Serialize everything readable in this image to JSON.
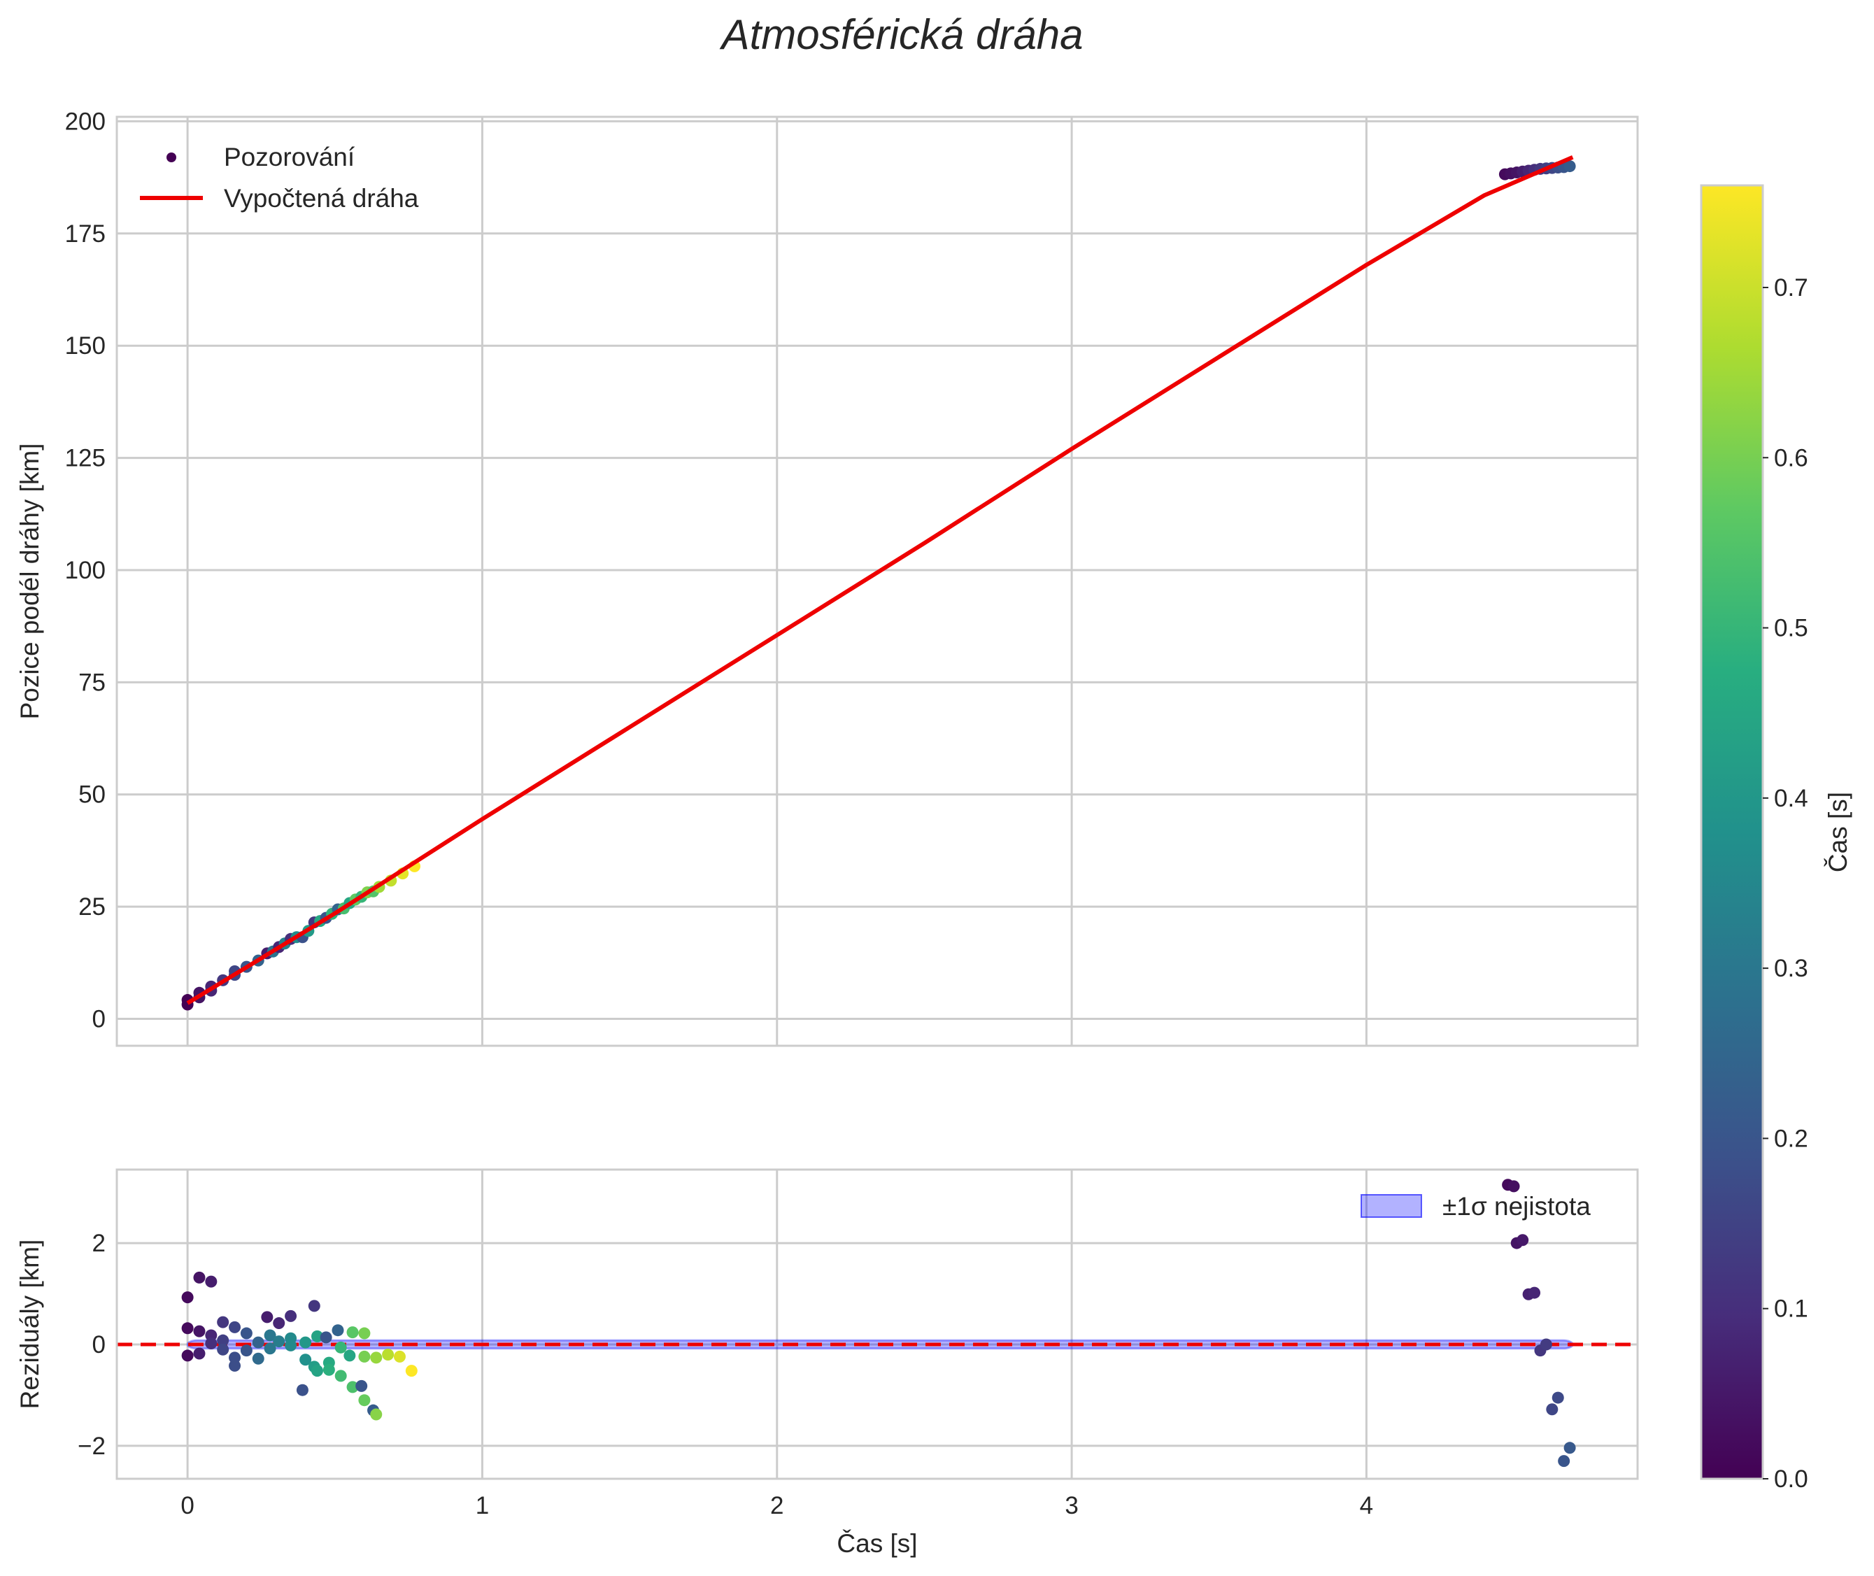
{
  "title": "Atmosférická dráha",
  "chart_data": [
    {
      "type": "scatter",
      "panel": "top",
      "ylabel": "Pozice podél dráhy [km]",
      "xlim": [
        -0.24,
        4.92
      ],
      "ylim": [
        -6,
        201
      ],
      "xticks": [
        0,
        1,
        2,
        3,
        4
      ],
      "xtick_labels": [
        "",
        "",
        "",
        "",
        ""
      ],
      "yticks": [
        0,
        25,
        50,
        75,
        100,
        125,
        150,
        175,
        200
      ],
      "ytick_labels": [
        "0",
        "25",
        "50",
        "75",
        "100",
        "125",
        "150",
        "175",
        "200"
      ],
      "grid": true,
      "legend": {
        "position": "top-left",
        "entries": [
          {
            "label": "Pozorování",
            "kind": "scatter"
          },
          {
            "label": "Vypočtená dráha",
            "kind": "line",
            "color": "#ee0000"
          }
        ]
      },
      "series": [
        {
          "name": "Pozorování",
          "kind": "scatter",
          "colormap": "viridis",
          "points_cluster1": [
            {
              "x": 0.0,
              "y": 4.2,
              "c": 0.0
            },
            {
              "x": 0.0,
              "y": 3.2,
              "c": 0.0
            },
            {
              "x": 0.04,
              "y": 5.8,
              "c": 0.04
            },
            {
              "x": 0.04,
              "y": 4.8,
              "c": 0.04
            },
            {
              "x": 0.08,
              "y": 7.2,
              "c": 0.08
            },
            {
              "x": 0.08,
              "y": 6.3,
              "c": 0.08
            },
            {
              "x": 0.12,
              "y": 8.6,
              "c": 0.12
            },
            {
              "x": 0.16,
              "y": 9.8,
              "c": 0.16
            },
            {
              "x": 0.16,
              "y": 10.6,
              "c": 0.16
            },
            {
              "x": 0.2,
              "y": 11.6,
              "c": 0.2
            },
            {
              "x": 0.24,
              "y": 13.0,
              "c": 0.24
            },
            {
              "x": 0.27,
              "y": 14.6,
              "c": 0.06
            },
            {
              "x": 0.29,
              "y": 15.0,
              "c": 0.29
            },
            {
              "x": 0.31,
              "y": 16.0,
              "c": 0.08
            },
            {
              "x": 0.33,
              "y": 16.8,
              "c": 0.33
            },
            {
              "x": 0.35,
              "y": 17.8,
              "c": 0.1
            },
            {
              "x": 0.37,
              "y": 18.2,
              "c": 0.37
            },
            {
              "x": 0.39,
              "y": 18.2,
              "c": 0.19
            },
            {
              "x": 0.41,
              "y": 19.6,
              "c": 0.41
            },
            {
              "x": 0.43,
              "y": 21.5,
              "c": 0.12
            },
            {
              "x": 0.45,
              "y": 21.8,
              "c": 0.45
            },
            {
              "x": 0.47,
              "y": 22.5,
              "c": 0.2
            },
            {
              "x": 0.49,
              "y": 23.4,
              "c": 0.49
            },
            {
              "x": 0.51,
              "y": 24.4,
              "c": 0.24
            },
            {
              "x": 0.53,
              "y": 24.6,
              "c": 0.53
            },
            {
              "x": 0.55,
              "y": 25.8,
              "c": 0.45
            },
            {
              "x": 0.57,
              "y": 26.6,
              "c": 0.57
            },
            {
              "x": 0.59,
              "y": 27.2,
              "c": 0.5
            },
            {
              "x": 0.61,
              "y": 28.2,
              "c": 0.61
            },
            {
              "x": 0.63,
              "y": 28.4,
              "c": 0.55
            },
            {
              "x": 0.65,
              "y": 29.4,
              "c": 0.65
            },
            {
              "x": 0.69,
              "y": 30.8,
              "c": 0.69
            },
            {
              "x": 0.73,
              "y": 32.4,
              "c": 0.73
            },
            {
              "x": 0.77,
              "y": 34.0,
              "c": 0.76
            }
          ],
          "points_cluster2": [
            {
              "x": 4.47,
              "y": 188.2,
              "c": 0.02
            },
            {
              "x": 4.49,
              "y": 188.4,
              "c": 0.03
            },
            {
              "x": 4.51,
              "y": 188.6,
              "c": 0.04
            },
            {
              "x": 4.53,
              "y": 188.8,
              "c": 0.06
            },
            {
              "x": 4.55,
              "y": 189.0,
              "c": 0.08
            },
            {
              "x": 4.57,
              "y": 189.2,
              "c": 0.1
            },
            {
              "x": 4.59,
              "y": 189.4,
              "c": 0.12
            },
            {
              "x": 4.61,
              "y": 189.5,
              "c": 0.14
            },
            {
              "x": 4.63,
              "y": 189.6,
              "c": 0.16
            },
            {
              "x": 4.65,
              "y": 189.7,
              "c": 0.18
            },
            {
              "x": 4.67,
              "y": 189.8,
              "c": 0.2
            },
            {
              "x": 4.69,
              "y": 190.0,
              "c": 0.22
            }
          ]
        },
        {
          "name": "Vypočtená dráha",
          "kind": "line",
          "color": "#ee0000",
          "x": [
            0.0,
            0.5,
            1.0,
            1.5,
            2.0,
            2.5,
            3.0,
            3.5,
            4.0,
            4.4,
            4.7
          ],
          "y": [
            3.5,
            23.5,
            44.5,
            65.0,
            85.5,
            106.0,
            127.0,
            147.5,
            168.0,
            183.5,
            192.0
          ]
        }
      ]
    },
    {
      "type": "scatter",
      "panel": "bottom",
      "xlabel": "Čas [s]",
      "ylabel": "Reziduály [km]",
      "xlim": [
        -0.24,
        4.92
      ],
      "ylim": [
        -2.65,
        3.45
      ],
      "xticks": [
        0,
        1,
        2,
        3,
        4
      ],
      "xtick_labels": [
        "0",
        "1",
        "2",
        "3",
        "4"
      ],
      "yticks": [
        -2,
        0,
        2
      ],
      "ytick_labels": [
        "−2",
        "0",
        "2"
      ],
      "grid": true,
      "legend": {
        "position": "top-right",
        "entries": [
          {
            "label": "±1σ nejistota",
            "kind": "band",
            "color": "#0000ff"
          }
        ]
      },
      "zero_line": {
        "y": 0,
        "color": "#ee0000",
        "style": "dashed"
      },
      "band": {
        "x_start": 0.0,
        "x_end": 4.7,
        "half_width": 0.08
      },
      "series": [
        {
          "name": "Reziduály",
          "kind": "scatter",
          "colormap": "viridis",
          "points": [
            {
              "x": 0.0,
              "y": 0.93,
              "c": 0.02
            },
            {
              "x": 0.0,
              "y": 0.32,
              "c": 0.02
            },
            {
              "x": 0.0,
              "y": -0.22,
              "c": 0.02
            },
            {
              "x": 0.04,
              "y": 1.32,
              "c": 0.04
            },
            {
              "x": 0.04,
              "y": 0.26,
              "c": 0.04
            },
            {
              "x": 0.04,
              "y": -0.18,
              "c": 0.06
            },
            {
              "x": 0.08,
              "y": 1.24,
              "c": 0.06
            },
            {
              "x": 0.08,
              "y": 0.18,
              "c": 0.08
            },
            {
              "x": 0.08,
              "y": 0.02,
              "c": 0.1
            },
            {
              "x": 0.12,
              "y": 0.44,
              "c": 0.12
            },
            {
              "x": 0.12,
              "y": 0.08,
              "c": 0.14
            },
            {
              "x": 0.12,
              "y": -0.1,
              "c": 0.16
            },
            {
              "x": 0.16,
              "y": 0.34,
              "c": 0.16
            },
            {
              "x": 0.16,
              "y": -0.26,
              "c": 0.18
            },
            {
              "x": 0.16,
              "y": -0.42,
              "c": 0.18
            },
            {
              "x": 0.2,
              "y": 0.22,
              "c": 0.2
            },
            {
              "x": 0.2,
              "y": -0.12,
              "c": 0.2
            },
            {
              "x": 0.24,
              "y": 0.04,
              "c": 0.24
            },
            {
              "x": 0.24,
              "y": -0.28,
              "c": 0.26
            },
            {
              "x": 0.27,
              "y": 0.54,
              "c": 0.06
            },
            {
              "x": 0.28,
              "y": 0.18,
              "c": 0.3
            },
            {
              "x": 0.28,
              "y": -0.08,
              "c": 0.3
            },
            {
              "x": 0.31,
              "y": 0.42,
              "c": 0.08
            },
            {
              "x": 0.31,
              "y": 0.06,
              "c": 0.32
            },
            {
              "x": 0.35,
              "y": 0.56,
              "c": 0.1
            },
            {
              "x": 0.35,
              "y": 0.12,
              "c": 0.36
            },
            {
              "x": 0.35,
              "y": -0.02,
              "c": 0.36
            },
            {
              "x": 0.39,
              "y": -0.9,
              "c": 0.19
            },
            {
              "x": 0.4,
              "y": -0.3,
              "c": 0.38
            },
            {
              "x": 0.4,
              "y": 0.04,
              "c": 0.4
            },
            {
              "x": 0.43,
              "y": 0.76,
              "c": 0.12
            },
            {
              "x": 0.43,
              "y": -0.44,
              "c": 0.42
            },
            {
              "x": 0.44,
              "y": -0.52,
              "c": 0.44
            },
            {
              "x": 0.44,
              "y": 0.16,
              "c": 0.44
            },
            {
              "x": 0.47,
              "y": 0.14,
              "c": 0.2
            },
            {
              "x": 0.48,
              "y": -0.36,
              "c": 0.46
            },
            {
              "x": 0.48,
              "y": -0.5,
              "c": 0.48
            },
            {
              "x": 0.51,
              "y": 0.28,
              "c": 0.24
            },
            {
              "x": 0.52,
              "y": -0.06,
              "c": 0.5
            },
            {
              "x": 0.52,
              "y": -0.62,
              "c": 0.52
            },
            {
              "x": 0.55,
              "y": -0.22,
              "c": 0.45
            },
            {
              "x": 0.56,
              "y": -0.84,
              "c": 0.54
            },
            {
              "x": 0.56,
              "y": 0.24,
              "c": 0.56
            },
            {
              "x": 0.59,
              "y": -0.82,
              "c": 0.2
            },
            {
              "x": 0.6,
              "y": -1.1,
              "c": 0.58
            },
            {
              "x": 0.6,
              "y": -0.24,
              "c": 0.6
            },
            {
              "x": 0.6,
              "y": 0.22,
              "c": 0.6
            },
            {
              "x": 0.63,
              "y": -1.3,
              "c": 0.22
            },
            {
              "x": 0.64,
              "y": -1.38,
              "c": 0.62
            },
            {
              "x": 0.64,
              "y": -0.26,
              "c": 0.64
            },
            {
              "x": 0.68,
              "y": -0.2,
              "c": 0.68
            },
            {
              "x": 0.72,
              "y": -0.24,
              "c": 0.72
            },
            {
              "x": 0.76,
              "y": -0.52,
              "c": 0.76
            },
            {
              "x": 4.48,
              "y": 3.15,
              "c": 0.02
            },
            {
              "x": 4.5,
              "y": 3.12,
              "c": 0.03
            },
            {
              "x": 4.51,
              "y": 2.0,
              "c": 0.04
            },
            {
              "x": 4.53,
              "y": 2.06,
              "c": 0.05
            },
            {
              "x": 4.55,
              "y": 0.99,
              "c": 0.07
            },
            {
              "x": 4.57,
              "y": 1.02,
              "c": 0.08
            },
            {
              "x": 4.59,
              "y": -0.12,
              "c": 0.12
            },
            {
              "x": 4.61,
              "y": 0.0,
              "c": 0.13
            },
            {
              "x": 4.63,
              "y": -1.28,
              "c": 0.16
            },
            {
              "x": 4.65,
              "y": -1.05,
              "c": 0.17
            },
            {
              "x": 4.67,
              "y": -2.3,
              "c": 0.2
            },
            {
              "x": 4.69,
              "y": -2.04,
              "c": 0.21
            }
          ]
        }
      ]
    }
  ],
  "colorbar": {
    "label": "Čas [s]",
    "colormap": "viridis",
    "range": [
      0.0,
      0.76
    ],
    "ticks": [
      0.0,
      0.1,
      0.2,
      0.3,
      0.4,
      0.5,
      0.6,
      0.7
    ],
    "tick_labels": [
      "0.0",
      "0.1",
      "0.2",
      "0.3",
      "0.4",
      "0.5",
      "0.6",
      "0.7"
    ]
  }
}
